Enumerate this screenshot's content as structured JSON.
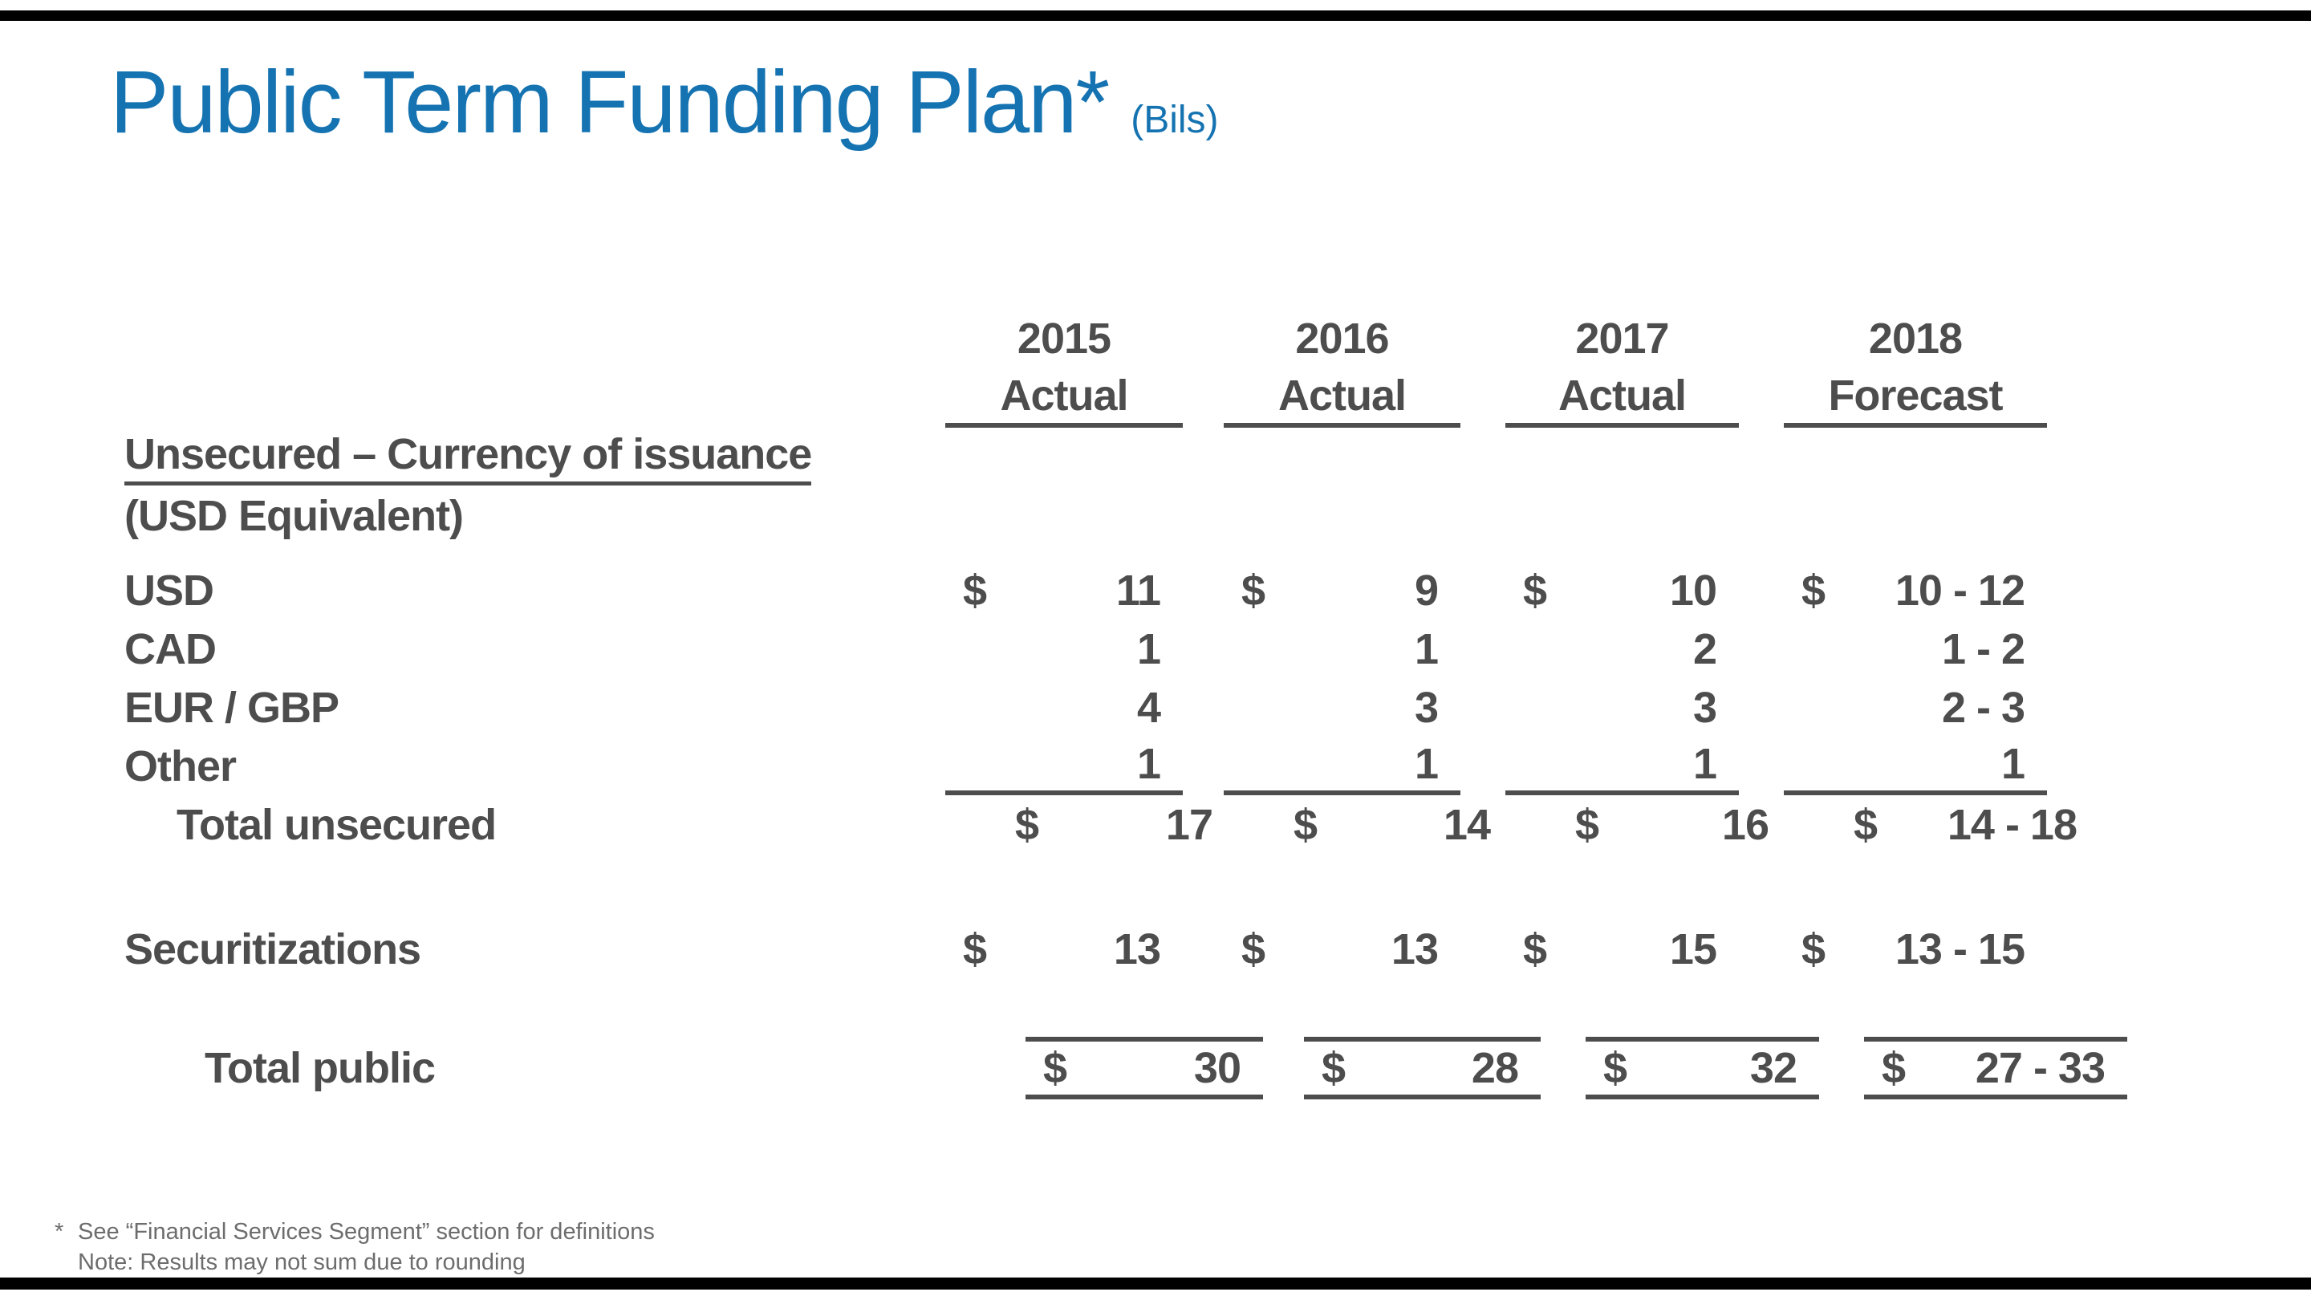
{
  "title": {
    "text": "Public Term Funding Plan*",
    "suffix": "(Bils)"
  },
  "colors": {
    "title_blue": "#1573b1",
    "table_gray": "#4d4d4d",
    "footnote_gray": "#6d6d6d",
    "edge_bar_black": "#000000"
  },
  "table": {
    "columns": [
      {
        "year": "2015",
        "label": "Actual"
      },
      {
        "year": "2016",
        "label": "Actual"
      },
      {
        "year": "2017",
        "label": "Actual"
      },
      {
        "year": "2018",
        "label": "Forecast"
      }
    ],
    "section": {
      "line1": "Unsecured – Currency of issuance",
      "line2": "(USD Equivalent)"
    },
    "rows": [
      {
        "label": "USD",
        "cells": [
          {
            "d": "$",
            "v": "11"
          },
          {
            "d": "$",
            "v": "9"
          },
          {
            "d": "$",
            "v": "10"
          },
          {
            "d": "$",
            "v": "10 - 12"
          }
        ]
      },
      {
        "label": "CAD",
        "cells": [
          {
            "d": "",
            "v": "1"
          },
          {
            "d": "",
            "v": "1"
          },
          {
            "d": "",
            "v": "2"
          },
          {
            "d": "",
            "v": "1 - 2"
          }
        ]
      },
      {
        "label": "EUR / GBP",
        "cells": [
          {
            "d": "",
            "v": "4"
          },
          {
            "d": "",
            "v": "3"
          },
          {
            "d": "",
            "v": "3"
          },
          {
            "d": "",
            "v": "2 - 3"
          }
        ]
      },
      {
        "label": "Other",
        "cells": [
          {
            "d": "",
            "v": "1"
          },
          {
            "d": "",
            "v": "1"
          },
          {
            "d": "",
            "v": "1"
          },
          {
            "d": "",
            "v": "1"
          }
        ]
      },
      {
        "label": "Total unsecured",
        "cells": [
          {
            "d": "$",
            "v": "17"
          },
          {
            "d": "$",
            "v": "14"
          },
          {
            "d": "$",
            "v": "16"
          },
          {
            "d": "$",
            "v": "14 - 18"
          }
        ]
      },
      {
        "label": "Securitizations",
        "cells": [
          {
            "d": "$",
            "v": "13"
          },
          {
            "d": "$",
            "v": "13"
          },
          {
            "d": "$",
            "v": "15"
          },
          {
            "d": "$",
            "v": "13 - 15"
          }
        ]
      },
      {
        "label": "Total public",
        "cells": [
          {
            "d": "$",
            "v": "30"
          },
          {
            "d": "$",
            "v": "28"
          },
          {
            "d": "$",
            "v": "32"
          },
          {
            "d": "$",
            "v": "27 - 33"
          }
        ]
      }
    ]
  },
  "footnotes": {
    "star": "*",
    "line1": "See “Financial Services Segment” section for definitions",
    "line2": "Note: Results may not sum due to rounding"
  }
}
